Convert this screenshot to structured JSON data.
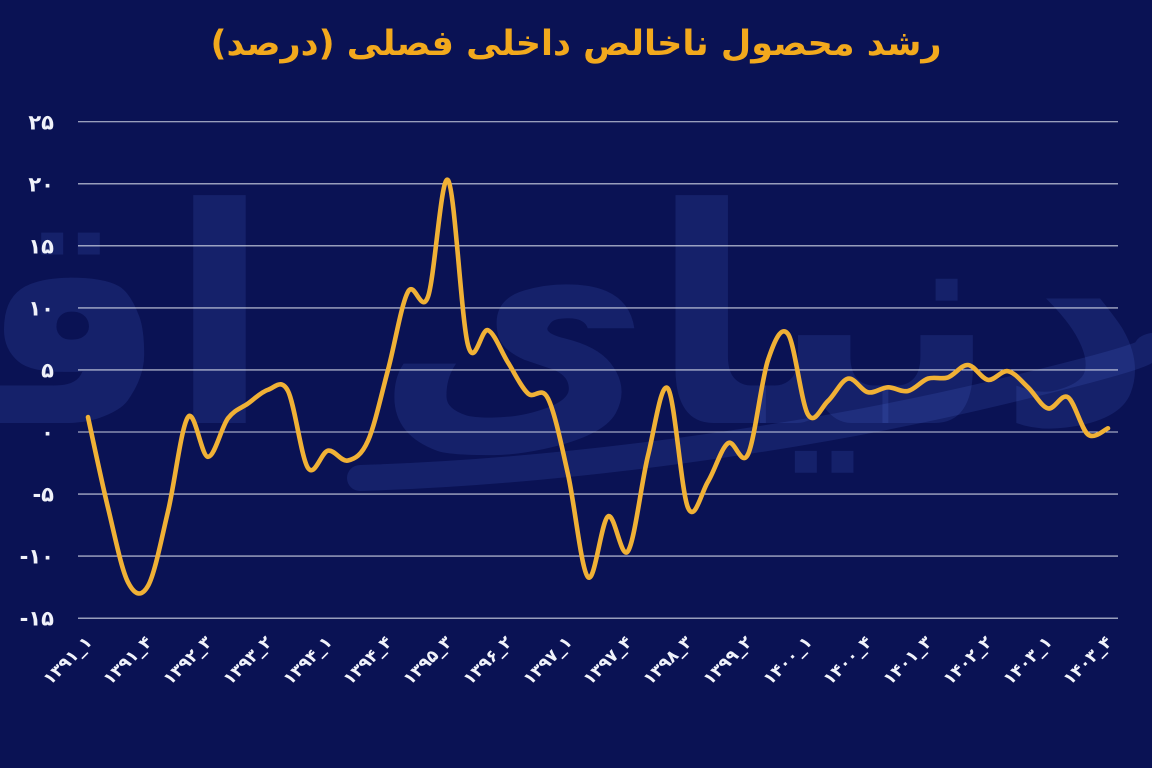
{
  "title": "رشد محصول ناخالص داخلی فصلی (درصد)",
  "watermark_text": "دنیای اقتصاد",
  "colors": {
    "background": "#0a1254",
    "title": "#f2a91d",
    "line": "#f0b136",
    "grid": "#dde1ee",
    "tick_text": "#f0f2fa",
    "watermark": "rgba(100,140,255,0.13)"
  },
  "chart_data": {
    "type": "line",
    "title": "رشد محصول ناخالص داخلی فصلی (درصد)",
    "xlabel": "",
    "ylabel": "",
    "ylim": [
      -15,
      25
    ],
    "grid": "horizontal",
    "legend": "none",
    "y_ticks": [
      {
        "value": 25,
        "label": "۲۵"
      },
      {
        "value": 20,
        "label": "۲۰"
      },
      {
        "value": 15,
        "label": "۱۵"
      },
      {
        "value": 10,
        "label": "۱۰"
      },
      {
        "value": 5,
        "label": "۵"
      },
      {
        "value": 0,
        "label": "۰"
      },
      {
        "value": -5,
        "label": "-۵"
      },
      {
        "value": -10,
        "label": "-۱۰"
      },
      {
        "value": -15,
        "label": "-۱۵"
      }
    ],
    "x_tick_labels": [
      "۱۳۹۱_۱",
      "۱۳۹۱_۴",
      "۱۳۹۲_۳",
      "۱۳۹۳_۲",
      "۱۳۹۴_۱",
      "۱۳۹۴_۴",
      "۱۳۹۵_۳",
      "۱۳۹۶_۲",
      "۱۳۹۷_۱",
      "۱۳۹۷_۴",
      "۱۳۹۸_۳",
      "۱۳۹۹_۲",
      "۱۴۰۰_۱",
      "۱۴۰۰_۴",
      "۱۴۰۱_۳",
      "۱۴۰۲_۲",
      "۱۴۰۳_۱",
      "۱۴۰۳_۴"
    ],
    "x_tick_every": 3,
    "categories": [
      "1391_1",
      "1391_2",
      "1391_3",
      "1391_4",
      "1392_1",
      "1392_2",
      "1392_3",
      "1392_4",
      "1393_1",
      "1393_2",
      "1393_3",
      "1393_4",
      "1394_1",
      "1394_2",
      "1394_3",
      "1394_4",
      "1395_1",
      "1395_2",
      "1395_3",
      "1395_4",
      "1396_1",
      "1396_2",
      "1396_3",
      "1396_4",
      "1397_1",
      "1397_2",
      "1397_3",
      "1397_4",
      "1398_1",
      "1398_2",
      "1398_3",
      "1398_4",
      "1399_1",
      "1399_2",
      "1399_3",
      "1399_4",
      "1400_1",
      "1400_2",
      "1400_3",
      "1400_4",
      "1401_1",
      "1401_2",
      "1401_3",
      "1401_4",
      "1402_1",
      "1402_2",
      "1402_3",
      "1402_4",
      "1403_1",
      "1403_2",
      "1403_3",
      "1403_4"
    ],
    "values": [
      1.2,
      -6.1,
      -12.1,
      -12.4,
      -6.4,
      1.2,
      -2.0,
      1.1,
      2.3,
      3.4,
      3.3,
      -2.9,
      -1.5,
      -2.3,
      -0.7,
      5.0,
      11.3,
      10.9,
      20.3,
      7.0,
      8.2,
      5.6,
      3.1,
      2.7,
      -3.4,
      -11.7,
      -6.8,
      -9.6,
      -1.9,
      3.5,
      -6.1,
      -4.0,
      -0.9,
      -1.8,
      5.8,
      7.9,
      1.4,
      2.5,
      4.3,
      3.2,
      3.6,
      3.3,
      4.3,
      4.4,
      5.4,
      4.2,
      4.9,
      3.6,
      1.9,
      2.8,
      -0.2,
      0.3
    ]
  }
}
